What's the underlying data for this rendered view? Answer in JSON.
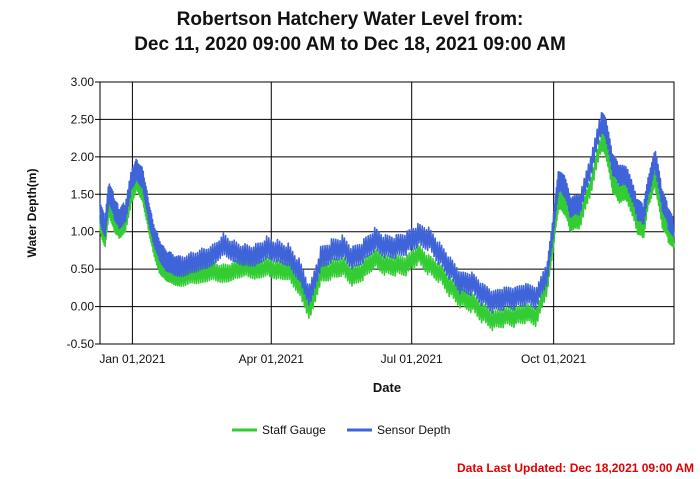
{
  "title_line1": "Robertson Hatchery Water Level from:",
  "title_line2": "Dec 11, 2020 09:00 AM to Dec 18, 2021 09:00 AM",
  "footer": {
    "last_updated": "Data Last Updated: Dec 18,2021 09:00 AM",
    "last_updated_color": "#e00000"
  },
  "chart_data": {
    "type": "line",
    "xlabel": "Date",
    "ylabel": "Water Depth(m)",
    "xlim": [
      "2020-12-11",
      "2021-12-18"
    ],
    "ylim": [
      -0.5,
      3.0
    ],
    "y_ticks": [
      -0.5,
      0.0,
      0.5,
      1.0,
      1.5,
      2.0,
      2.5,
      3.0
    ],
    "y_tick_labels": [
      "-0.50",
      "0.00",
      "0.50",
      "1.00",
      "1.50",
      "2.00",
      "2.50",
      "3.00"
    ],
    "x_ticks": [
      "2021-01-01",
      "2021-04-01",
      "2021-07-01",
      "2021-10-01"
    ],
    "x_tick_labels": [
      "Jan 01,2021",
      "Apr 01,2021",
      "Jul 01,2021",
      "Oct 01,2021"
    ],
    "grid": true,
    "legend_position": "bottom",
    "series": [
      {
        "name": "Staff Gauge",
        "color": "#33cc33",
        "x": [
          "2020-12-11",
          "2020-12-14",
          "2020-12-17",
          "2020-12-20",
          "2020-12-23",
          "2020-12-27",
          "2021-01-01",
          "2021-01-04",
          "2021-01-08",
          "2021-01-11",
          "2021-01-14",
          "2021-01-18",
          "2021-01-22",
          "2021-01-26",
          "2021-02-01",
          "2021-02-08",
          "2021-02-15",
          "2021-02-22",
          "2021-03-01",
          "2021-03-08",
          "2021-03-15",
          "2021-03-22",
          "2021-03-29",
          "2021-04-05",
          "2021-04-12",
          "2021-04-19",
          "2021-04-26",
          "2021-05-03",
          "2021-05-10",
          "2021-05-17",
          "2021-05-24",
          "2021-05-31",
          "2021-06-07",
          "2021-06-14",
          "2021-06-21",
          "2021-06-28",
          "2021-07-05",
          "2021-07-12",
          "2021-07-19",
          "2021-07-26",
          "2021-08-02",
          "2021-08-09",
          "2021-08-16",
          "2021-08-23",
          "2021-08-30",
          "2021-09-06",
          "2021-09-13",
          "2021-09-20",
          "2021-09-27",
          "2021-10-01",
          "2021-10-04",
          "2021-10-08",
          "2021-10-12",
          "2021-10-18",
          "2021-10-25",
          "2021-11-01",
          "2021-11-04",
          "2021-11-08",
          "2021-11-12",
          "2021-11-18",
          "2021-11-24",
          "2021-11-28",
          "2021-12-02",
          "2021-12-06",
          "2021-12-10",
          "2021-12-14",
          "2021-12-18"
        ],
        "values": [
          1.15,
          0.9,
          1.35,
          1.15,
          1.05,
          1.1,
          1.55,
          1.7,
          1.5,
          1.2,
          0.9,
          0.6,
          0.5,
          0.45,
          0.4,
          0.45,
          0.45,
          0.5,
          0.45,
          0.5,
          0.55,
          0.5,
          0.55,
          0.5,
          0.5,
          0.3,
          -0.05,
          0.45,
          0.5,
          0.55,
          0.4,
          0.5,
          0.65,
          0.55,
          0.55,
          0.55,
          0.7,
          0.55,
          0.45,
          0.25,
          0.1,
          0.05,
          -0.1,
          -0.2,
          -0.15,
          -0.15,
          -0.1,
          -0.15,
          0.3,
          0.9,
          1.4,
          1.35,
          1.1,
          1.15,
          1.6,
          2.2,
          2.1,
          1.65,
          1.5,
          1.5,
          1.1,
          1.0,
          1.5,
          1.7,
          1.2,
          1.0,
          0.85
        ]
      },
      {
        "name": "Sensor Depth",
        "color": "#3f63d8",
        "x": [
          "2020-12-11",
          "2020-12-14",
          "2020-12-17",
          "2020-12-20",
          "2020-12-23",
          "2020-12-27",
          "2021-01-01",
          "2021-01-04",
          "2021-01-08",
          "2021-01-11",
          "2021-01-14",
          "2021-01-18",
          "2021-01-22",
          "2021-01-26",
          "2021-02-01",
          "2021-02-08",
          "2021-02-15",
          "2021-02-22",
          "2021-03-01",
          "2021-03-08",
          "2021-03-15",
          "2021-03-22",
          "2021-03-29",
          "2021-04-05",
          "2021-04-12",
          "2021-04-19",
          "2021-04-26",
          "2021-05-03",
          "2021-05-10",
          "2021-05-17",
          "2021-05-24",
          "2021-05-31",
          "2021-06-07",
          "2021-06-14",
          "2021-06-21",
          "2021-06-28",
          "2021-07-05",
          "2021-07-12",
          "2021-07-19",
          "2021-07-26",
          "2021-08-02",
          "2021-08-09",
          "2021-08-16",
          "2021-08-23",
          "2021-08-30",
          "2021-09-06",
          "2021-09-13",
          "2021-09-20",
          "2021-09-27",
          "2021-10-01",
          "2021-10-04",
          "2021-10-08",
          "2021-10-12",
          "2021-10-18",
          "2021-10-25",
          "2021-11-01",
          "2021-11-04",
          "2021-11-08",
          "2021-11-12",
          "2021-11-18",
          "2021-11-24",
          "2021-11-28",
          "2021-12-02",
          "2021-12-06",
          "2021-12-10",
          "2021-12-14",
          "2021-12-18"
        ],
        "values": [
          1.3,
          1.05,
          1.55,
          1.35,
          1.2,
          1.25,
          1.75,
          1.85,
          1.7,
          1.35,
          1.05,
          0.8,
          0.65,
          0.6,
          0.55,
          0.6,
          0.65,
          0.7,
          0.85,
          0.75,
          0.7,
          0.7,
          0.8,
          0.75,
          0.7,
          0.5,
          0.15,
          0.65,
          0.75,
          0.8,
          0.65,
          0.75,
          0.9,
          0.8,
          0.8,
          0.85,
          0.95,
          0.9,
          0.7,
          0.5,
          0.3,
          0.3,
          0.15,
          0.05,
          0.1,
          0.1,
          0.15,
          0.1,
          0.45,
          1.1,
          1.65,
          1.6,
          1.3,
          1.35,
          1.85,
          2.45,
          2.35,
          1.9,
          1.75,
          1.7,
          1.3,
          1.2,
          1.65,
          1.95,
          1.45,
          1.2,
          1.0
        ]
      }
    ]
  }
}
